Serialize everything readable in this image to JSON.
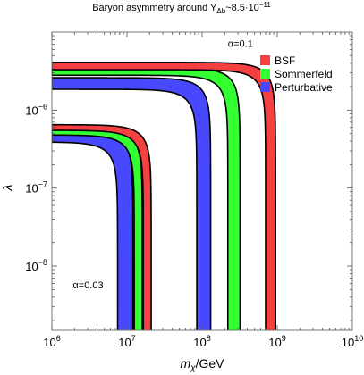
{
  "title": "Baryon asymmetry around Y",
  "title_subscript": "Δb",
  "title_tail": "~8.5·10",
  "title_superscript": "−11",
  "chart_data": {
    "type": "area",
    "xlabel_var": "m",
    "xlabel_sub": "χ",
    "xlabel_unit": "/GeV",
    "ylabel": "λ",
    "x_scale": "log",
    "y_scale": "log",
    "xlim": [
      1000000.0,
      10000000000.0
    ],
    "ylim": [
      1.5e-09,
      1e-05
    ],
    "grid": false,
    "legend_position": "top-right",
    "x_ticks": [
      {
        "value": 1000000.0,
        "base": "10",
        "exp": "6"
      },
      {
        "value": 10000000.0,
        "base": "10",
        "exp": "7"
      },
      {
        "value": 100000000.0,
        "base": "10",
        "exp": "8"
      },
      {
        "value": 1000000000.0,
        "base": "10",
        "exp": "9"
      },
      {
        "value": 10000000000.0,
        "base": "10",
        "exp": "10"
      }
    ],
    "y_ticks": [
      {
        "value": 1e-08,
        "base": "10",
        "exp": "−8"
      },
      {
        "value": 1e-07,
        "base": "10",
        "exp": "−7"
      },
      {
        "value": 1e-06,
        "base": "10",
        "exp": "−6"
      }
    ],
    "annotations": [
      {
        "text": "α=0.1",
        "x": 220000000.0,
        "y": 6.5e-06
      },
      {
        "text": "α=0.03",
        "x": 1900000.0,
        "y": 5.2e-09
      }
    ],
    "series": [
      {
        "name": "BSF",
        "color": "#f44040",
        "alpha": 0.1,
        "lambda_lower": 3.3e-06,
        "lambda_upper": 4.1e-06,
        "m_cut_lower": 700000000.0,
        "m_cut_upper": 950000000.0
      },
      {
        "name": "Sommerfeld",
        "color": "#33ff33",
        "alpha": 0.1,
        "lambda_lower": 2.8e-06,
        "lambda_upper": 3.5e-06,
        "m_cut_lower": 220000000.0,
        "m_cut_upper": 320000000.0
      },
      {
        "name": "Perturbative",
        "color": "#4848ff",
        "alpha": 0.1,
        "lambda_lower": 1.85e-06,
        "lambda_upper": 2.6e-06,
        "m_cut_lower": 85000000.0,
        "m_cut_upper": 130000000.0
      },
      {
        "name": "BSF",
        "color": "#f44040",
        "alpha": 0.03,
        "lambda_lower": 5.5e-07,
        "lambda_upper": 6.5e-07,
        "m_cut_lower": 16500000.0,
        "m_cut_upper": 21000000.0
      },
      {
        "name": "Sommerfeld",
        "color": "#33ff33",
        "alpha": 0.03,
        "lambda_lower": 4.8e-07,
        "lambda_upper": 5.9e-07,
        "m_cut_lower": 12500000.0,
        "m_cut_upper": 16000000.0
      },
      {
        "name": "Perturbative",
        "color": "#4848ff",
        "alpha": 0.03,
        "lambda_lower": 3.9e-07,
        "lambda_upper": 5.4e-07,
        "m_cut_lower": 7500000.0,
        "m_cut_upper": 12000000.0
      }
    ],
    "legend": [
      {
        "label": "BSF",
        "color": "#f44040"
      },
      {
        "label": "Sommerfeld",
        "color": "#33ff33"
      },
      {
        "label": "Perturbative",
        "color": "#4848ff"
      }
    ]
  }
}
